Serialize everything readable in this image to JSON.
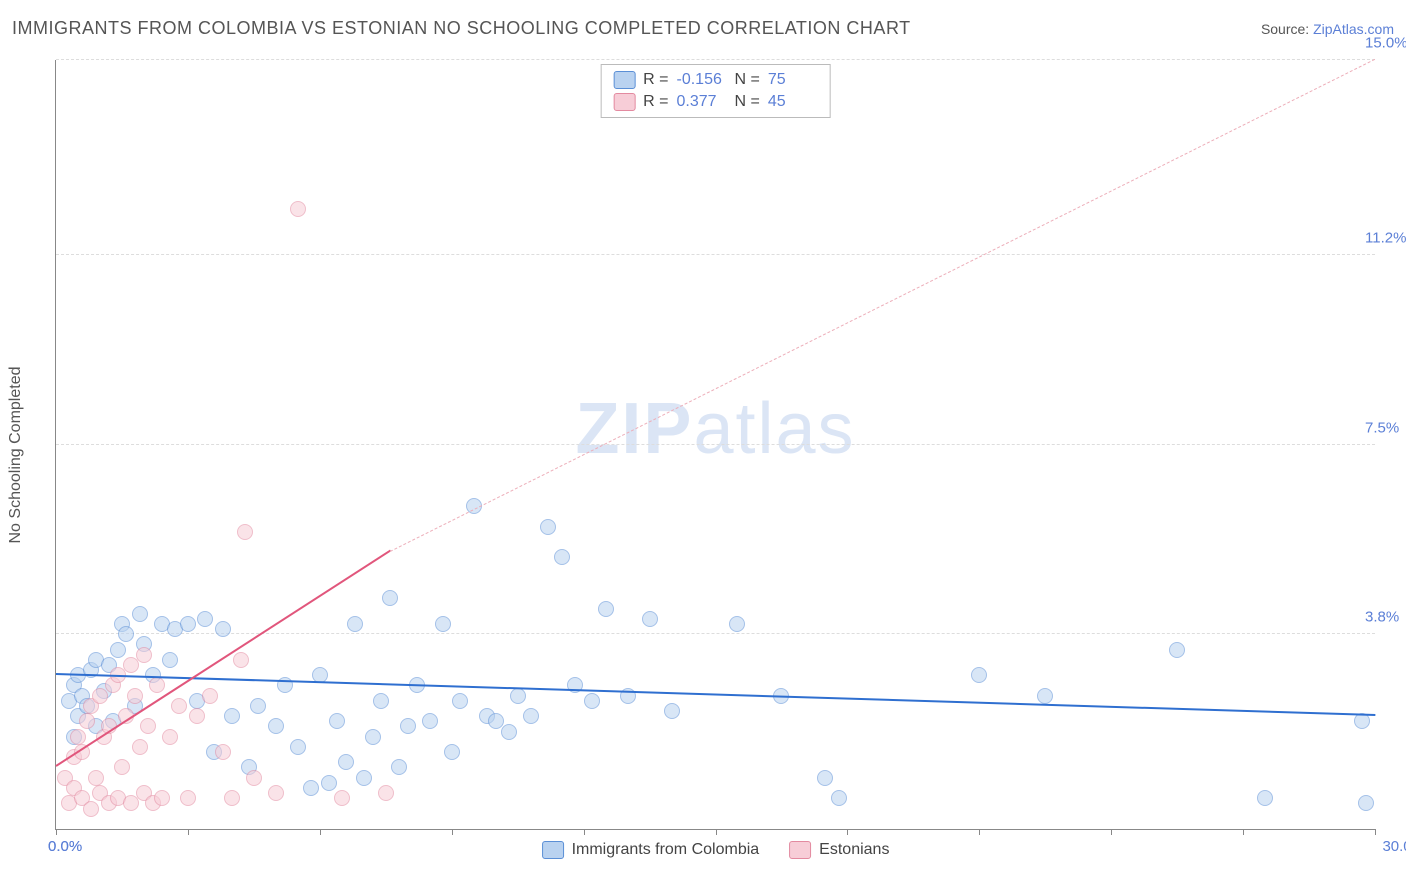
{
  "header": {
    "title": "IMMIGRANTS FROM COLOMBIA VS ESTONIAN NO SCHOOLING COMPLETED CORRELATION CHART",
    "source_prefix": "Source: ",
    "source_link": "ZipAtlas.com"
  },
  "watermark": {
    "zip": "ZIP",
    "atlas": "atlas"
  },
  "chart": {
    "type": "scatter",
    "ylabel": "No Schooling Completed",
    "xlim": [
      0.0,
      30.0
    ],
    "ylim": [
      0.0,
      15.0
    ],
    "x_tick_step": 3.0,
    "y_ticks": [
      0.0,
      3.8,
      7.5,
      11.2,
      15.0
    ],
    "y_tick_labels": [
      "0.0%",
      "3.8%",
      "7.5%",
      "11.2%",
      "15.0%"
    ],
    "xlim_labels": [
      "0.0%",
      "30.0%"
    ],
    "grid_color": "#dddddd",
    "axis_color": "#888888",
    "tick_label_color": "#5b7fd6",
    "background_color": "#ffffff",
    "point_radius": 8,
    "point_opacity": 0.55,
    "series": [
      {
        "name": "Immigrants from Colombia",
        "color_fill": "#b9d2f0",
        "color_stroke": "#5b8fd6",
        "R": "-0.156",
        "N": "75",
        "trend": {
          "x1": 0.0,
          "y1": 3.0,
          "x2": 30.0,
          "y2": 2.2,
          "color": "#2f6fd0",
          "width": 2,
          "style": "solid"
        },
        "points": [
          [
            0.3,
            2.5
          ],
          [
            0.4,
            2.8
          ],
          [
            0.4,
            1.8
          ],
          [
            0.5,
            2.2
          ],
          [
            0.5,
            3.0
          ],
          [
            0.6,
            2.6
          ],
          [
            0.7,
            2.4
          ],
          [
            0.8,
            3.1
          ],
          [
            0.9,
            2.0
          ],
          [
            0.9,
            3.3
          ],
          [
            1.1,
            2.7
          ],
          [
            1.2,
            3.2
          ],
          [
            1.3,
            2.1
          ],
          [
            1.4,
            3.5
          ],
          [
            1.5,
            4.0
          ],
          [
            1.6,
            3.8
          ],
          [
            1.8,
            2.4
          ],
          [
            1.9,
            4.2
          ],
          [
            2.0,
            3.6
          ],
          [
            2.2,
            3.0
          ],
          [
            2.4,
            4.0
          ],
          [
            2.6,
            3.3
          ],
          [
            2.7,
            3.9
          ],
          [
            3.0,
            4.0
          ],
          [
            3.2,
            2.5
          ],
          [
            3.4,
            4.1
          ],
          [
            3.6,
            1.5
          ],
          [
            3.8,
            3.9
          ],
          [
            4.0,
            2.2
          ],
          [
            4.4,
            1.2
          ],
          [
            4.6,
            2.4
          ],
          [
            5.0,
            2.0
          ],
          [
            5.2,
            2.8
          ],
          [
            5.5,
            1.6
          ],
          [
            5.8,
            0.8
          ],
          [
            6.0,
            3.0
          ],
          [
            6.2,
            0.9
          ],
          [
            6.4,
            2.1
          ],
          [
            6.6,
            1.3
          ],
          [
            6.8,
            4.0
          ],
          [
            7.0,
            1.0
          ],
          [
            7.2,
            1.8
          ],
          [
            7.4,
            2.5
          ],
          [
            7.6,
            4.5
          ],
          [
            7.8,
            1.2
          ],
          [
            8.0,
            2.0
          ],
          [
            8.2,
            2.8
          ],
          [
            8.5,
            2.1
          ],
          [
            8.8,
            4.0
          ],
          [
            9.0,
            1.5
          ],
          [
            9.2,
            2.5
          ],
          [
            9.5,
            6.3
          ],
          [
            9.8,
            2.2
          ],
          [
            10.0,
            2.1
          ],
          [
            10.3,
            1.9
          ],
          [
            10.5,
            2.6
          ],
          [
            10.8,
            2.2
          ],
          [
            11.2,
            5.9
          ],
          [
            11.5,
            5.3
          ],
          [
            11.8,
            2.8
          ],
          [
            12.2,
            2.5
          ],
          [
            12.5,
            4.3
          ],
          [
            13.0,
            2.6
          ],
          [
            13.5,
            4.1
          ],
          [
            14.0,
            2.3
          ],
          [
            15.5,
            4.0
          ],
          [
            16.5,
            2.6
          ],
          [
            17.5,
            1.0
          ],
          [
            17.8,
            0.6
          ],
          [
            21.0,
            3.0
          ],
          [
            22.5,
            2.6
          ],
          [
            25.5,
            3.5
          ],
          [
            27.5,
            0.6
          ],
          [
            29.7,
            2.1
          ],
          [
            29.8,
            0.5
          ]
        ]
      },
      {
        "name": "Estonians",
        "color_fill": "#f7cdd7",
        "color_stroke": "#e38aa0",
        "R": "0.377",
        "N": "45",
        "trend_solid": {
          "x1": 0.0,
          "y1": 1.2,
          "x2": 7.6,
          "y2": 5.4,
          "color": "#e1567c",
          "width": 2,
          "style": "solid"
        },
        "trend_dashed": {
          "x1": 7.6,
          "y1": 5.4,
          "x2": 30.0,
          "y2": 15.0,
          "color": "#edaeb9",
          "width": 1,
          "style": "dashed"
        },
        "points": [
          [
            0.2,
            1.0
          ],
          [
            0.3,
            0.5
          ],
          [
            0.4,
            1.4
          ],
          [
            0.4,
            0.8
          ],
          [
            0.5,
            1.8
          ],
          [
            0.6,
            0.6
          ],
          [
            0.6,
            1.5
          ],
          [
            0.7,
            2.1
          ],
          [
            0.8,
            0.4
          ],
          [
            0.8,
            2.4
          ],
          [
            0.9,
            1.0
          ],
          [
            1.0,
            2.6
          ],
          [
            1.0,
            0.7
          ],
          [
            1.1,
            1.8
          ],
          [
            1.2,
            0.5
          ],
          [
            1.2,
            2.0
          ],
          [
            1.3,
            2.8
          ],
          [
            1.4,
            0.6
          ],
          [
            1.4,
            3.0
          ],
          [
            1.5,
            1.2
          ],
          [
            1.6,
            2.2
          ],
          [
            1.7,
            0.5
          ],
          [
            1.7,
            3.2
          ],
          [
            1.8,
            2.6
          ],
          [
            1.9,
            1.6
          ],
          [
            2.0,
            0.7
          ],
          [
            2.0,
            3.4
          ],
          [
            2.1,
            2.0
          ],
          [
            2.2,
            0.5
          ],
          [
            2.3,
            2.8
          ],
          [
            2.4,
            0.6
          ],
          [
            2.6,
            1.8
          ],
          [
            2.8,
            2.4
          ],
          [
            3.0,
            0.6
          ],
          [
            3.2,
            2.2
          ],
          [
            3.5,
            2.6
          ],
          [
            3.8,
            1.5
          ],
          [
            4.0,
            0.6
          ],
          [
            4.2,
            3.3
          ],
          [
            4.3,
            5.8
          ],
          [
            4.5,
            1.0
          ],
          [
            5.0,
            0.7
          ],
          [
            5.5,
            12.1
          ],
          [
            6.5,
            0.6
          ],
          [
            7.5,
            0.7
          ]
        ]
      }
    ],
    "stats_legend_labels": {
      "R": "R =",
      "N": "N ="
    }
  }
}
